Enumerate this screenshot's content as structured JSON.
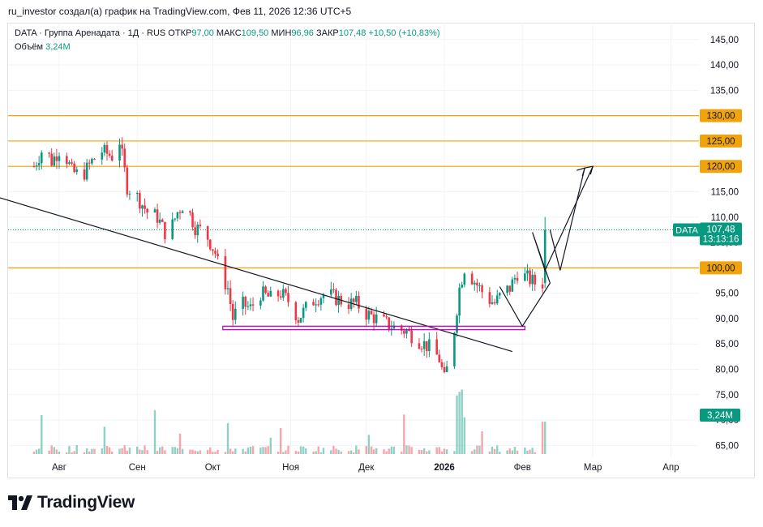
{
  "header": "ru_investor создал(а) график на TradingView.com, Фев 11, 2026 12:36 UTC+5",
  "legend": {
    "symbol": "DATA · Группа Аренадата · 1Д · RUS",
    "open_label": "ОТКР",
    "open": "97,00",
    "high_label": "МАКС",
    "high": "109,50",
    "low_label": "МИН",
    "low": "96,96",
    "close_label": "ЗАКР",
    "close": "107,48",
    "change": "+10,50 (+10,83%)",
    "volume_label": "Объём",
    "volume": "3,24M"
  },
  "brand": "TradingView",
  "colors": {
    "up": "#089981",
    "down": "#f23645",
    "level": "#f0a30a",
    "box": "#b000b0"
  },
  "chart_data": {
    "type": "candlestick",
    "ylim": [
      62.5,
      148
    ],
    "y_ticks": [
      "65,00",
      "70,00",
      "75,00",
      "80,00",
      "85,00",
      "90,00",
      "95,00",
      "100,00",
      "105,00",
      "110,00",
      "115,00",
      "120,00",
      "125,00",
      "130,00",
      "135,00",
      "140,00",
      "145,00"
    ],
    "x_ticks": [
      {
        "label": "Авг",
        "date": "2025-08-01"
      },
      {
        "label": "Сен",
        "date": "2025-09-01"
      },
      {
        "label": "Окт",
        "date": "2025-10-01"
      },
      {
        "label": "Ноя",
        "date": "2025-11-01"
      },
      {
        "label": "Дек",
        "date": "2025-12-01"
      },
      {
        "label": "2026",
        "date": "2026-01-01",
        "bold": true
      },
      {
        "label": "Фев",
        "date": "2026-02-01"
      },
      {
        "label": "Мар",
        "date": "2026-03-01"
      },
      {
        "label": "Апр",
        "date": "2026-04-01"
      }
    ],
    "levels": [
      {
        "value": 130,
        "label": "130,00"
      },
      {
        "value": 125,
        "label": "125,00"
      },
      {
        "value": 120,
        "label": "120,00"
      },
      {
        "value": 100,
        "label": "100,00"
      }
    ],
    "last_price": {
      "symbol": "DATA",
      "value": 107.48,
      "label": "107,48",
      "countdown": "13:13:16"
    },
    "volume_badge": "3,24M",
    "ohlc_path": [
      [
        "2025-07-22",
        120
      ],
      [
        "2025-07-26",
        124
      ],
      [
        "2025-07-29",
        121
      ],
      [
        "2025-08-02",
        124
      ],
      [
        "2025-08-06",
        119
      ],
      [
        "2025-08-10",
        118
      ],
      [
        "2025-08-14",
        121
      ],
      [
        "2025-08-18",
        123
      ],
      [
        "2025-08-22",
        122
      ],
      [
        "2025-08-25",
        125
      ],
      [
        "2025-08-28",
        116
      ],
      [
        "2025-09-01",
        114
      ],
      [
        "2025-09-05",
        111
      ],
      [
        "2025-09-09",
        110
      ],
      [
        "2025-09-13",
        106
      ],
      [
        "2025-09-17",
        111
      ],
      [
        "2025-09-20",
        113
      ],
      [
        "2025-09-24",
        108
      ],
      [
        "2025-09-28",
        107
      ],
      [
        "2025-10-02",
        103
      ],
      [
        "2025-10-04",
        99
      ],
      [
        "2025-10-07",
        96
      ],
      [
        "2025-10-09",
        90
      ],
      [
        "2025-10-12",
        93
      ],
      [
        "2025-10-16",
        92
      ],
      [
        "2025-10-20",
        95
      ],
      [
        "2025-10-24",
        94
      ],
      [
        "2025-10-28",
        95
      ],
      [
        "2025-11-01",
        93
      ],
      [
        "2025-11-04",
        90
      ],
      [
        "2025-11-07",
        92
      ],
      [
        "2025-11-11",
        94
      ],
      [
        "2025-11-15",
        95
      ],
      [
        "2025-11-19",
        94
      ],
      [
        "2025-11-23",
        93
      ],
      [
        "2025-11-27",
        93
      ],
      [
        "2025-12-01",
        91
      ],
      [
        "2025-12-05",
        90
      ],
      [
        "2025-12-09",
        89
      ],
      [
        "2025-12-13",
        88
      ],
      [
        "2025-12-17",
        87.5
      ],
      [
        "2025-12-21",
        86
      ],
      [
        "2025-12-24",
        85
      ],
      [
        "2025-12-27",
        84
      ],
      [
        "2025-12-30",
        82
      ],
      [
        "2026-01-01",
        78
      ],
      [
        "2026-01-03",
        82
      ],
      [
        "2026-01-05",
        88
      ],
      [
        "2026-01-07",
        96
      ],
      [
        "2026-01-09",
        100
      ],
      [
        "2026-01-12",
        98
      ],
      [
        "2026-01-15",
        96
      ],
      [
        "2026-01-18",
        94
      ],
      [
        "2026-01-21",
        93
      ],
      [
        "2026-01-24",
        95
      ],
      [
        "2026-01-27",
        96
      ],
      [
        "2026-01-30",
        99
      ],
      [
        "2026-02-03",
        98
      ],
      [
        "2026-02-06",
        97
      ],
      [
        "2026-02-09",
        97
      ],
      [
        "2026-02-10",
        107.48
      ]
    ],
    "volume_ohlc_note": "volume in millions",
    "trendlines": [
      {
        "from": [
          "2025-06-27",
          115.5
        ],
        "to": [
          "2026-01-28",
          83.5
        ]
      }
    ],
    "projection": [
      [
        "2026-01-23",
        96.3
      ],
      [
        "2026-02-01",
        88.5
      ],
      [
        "2026-02-12",
        97
      ],
      [
        "2026-02-05",
        107
      ],
      [
        "2026-02-10",
        99.5
      ],
      [
        "2026-03-01",
        120
      ]
    ],
    "support_box": {
      "from": "2025-10-05",
      "to": "2026-02-02",
      "low": 87.8,
      "high": 88.5
    }
  }
}
